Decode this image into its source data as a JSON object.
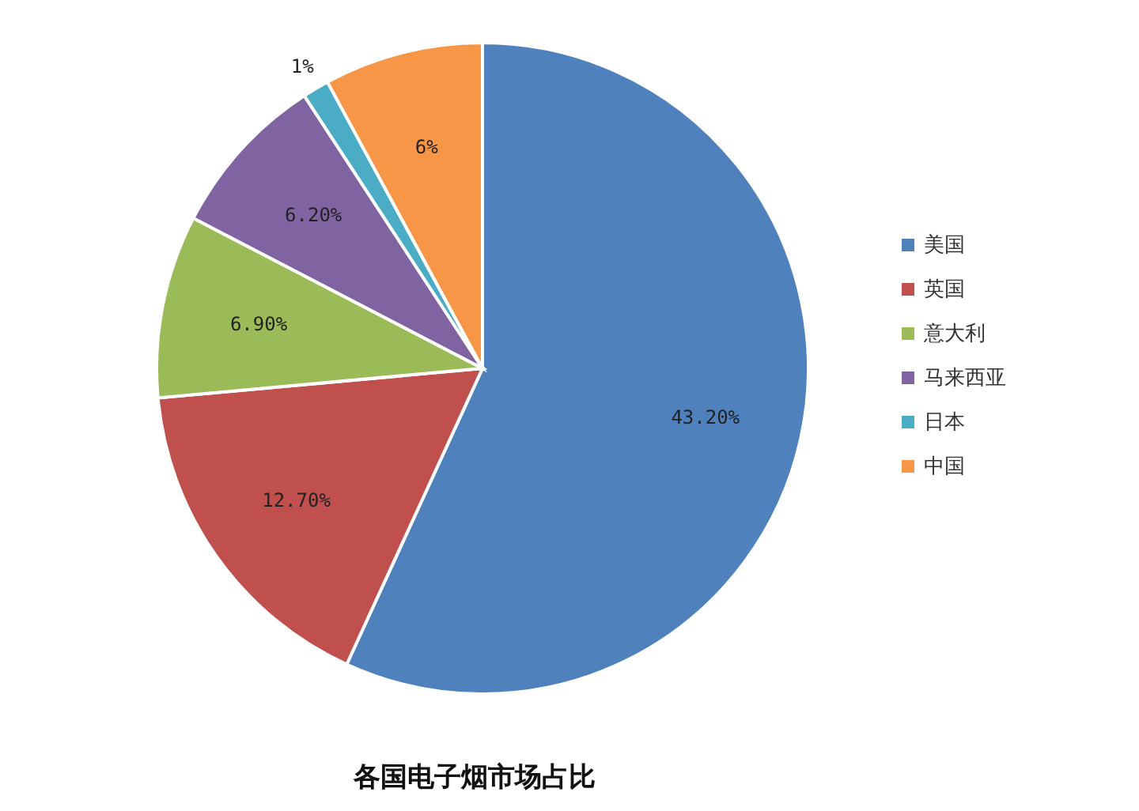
{
  "chart_data": {
    "type": "pie",
    "title": "各国电子烟市场占比",
    "categories": [
      "美国",
      "英国",
      "意大利",
      "马来西亚",
      "日本",
      "中国"
    ],
    "values": [
      43.2,
      12.7,
      6.9,
      6.2,
      1,
      6
    ],
    "value_labels": [
      "43.20%",
      "12.70%",
      "6.90%",
      "6.20%",
      "1%",
      "6%"
    ],
    "colors": [
      "#4f81bd",
      "#c0504d",
      "#9bbb59",
      "#8064a2",
      "#4bacc6",
      "#f79646"
    ],
    "legend": "right"
  }
}
